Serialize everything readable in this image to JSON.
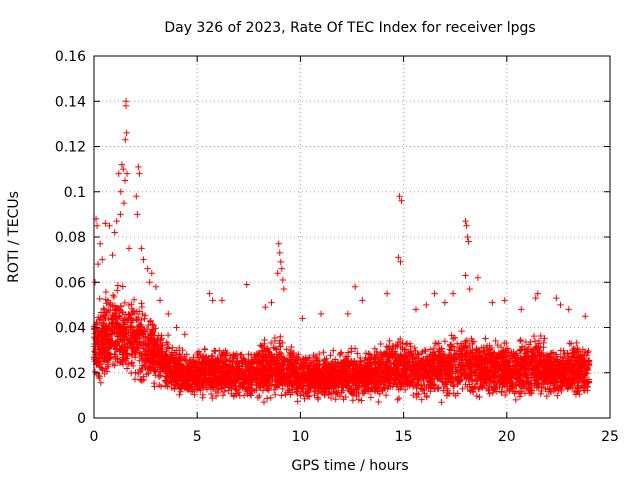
{
  "chart_data": {
    "type": "scatter",
    "title": "Day 326 of 2023, Rate Of TEC Index for receiver lpgs",
    "xlabel": "GPS time / hours",
    "ylabel": "ROTI / TECUs",
    "xlim": [
      0,
      25
    ],
    "ylim": [
      0,
      0.16
    ],
    "x_ticks": [
      0,
      5,
      10,
      15,
      20,
      25
    ],
    "x_tick_labels": [
      "0",
      "5",
      "10",
      "15",
      "20",
      "25"
    ],
    "y_ticks": [
      0,
      0.02,
      0.04,
      0.06,
      0.08,
      0.1,
      0.12,
      0.14,
      0.16
    ],
    "y_tick_labels": [
      "0",
      "0.02",
      "0.04",
      "0.06",
      "0.08",
      "0.1",
      "0.12",
      "0.14",
      "0.16"
    ],
    "grid": true,
    "marker": "+",
    "color": "#ff0000",
    "series": [
      {
        "points": [
          [
            1.55,
            0.14
          ],
          [
            1.55,
            0.138
          ],
          [
            1.58,
            0.126
          ],
          [
            1.52,
            0.123
          ],
          [
            1.35,
            0.112
          ],
          [
            1.42,
            0.11
          ],
          [
            1.6,
            0.108
          ],
          [
            1.5,
            0.105
          ],
          [
            2.15,
            0.111
          ],
          [
            2.2,
            0.108
          ],
          [
            2.05,
            0.098
          ],
          [
            2.1,
            0.09
          ],
          [
            1.2,
            0.108
          ],
          [
            1.3,
            0.1
          ],
          [
            1.45,
            0.095
          ],
          [
            1.28,
            0.09
          ],
          [
            0.1,
            0.088
          ],
          [
            0.15,
            0.085
          ],
          [
            0.3,
            0.077
          ],
          [
            0.55,
            0.086
          ],
          [
            0.75,
            0.085
          ],
          [
            1.1,
            0.087
          ],
          [
            1.0,
            0.082
          ],
          [
            2.3,
            0.075
          ],
          [
            2.4,
            0.07
          ],
          [
            2.6,
            0.066
          ],
          [
            2.8,
            0.064
          ],
          [
            0.4,
            0.07
          ],
          [
            0.2,
            0.068
          ],
          [
            0.05,
            0.06
          ],
          [
            0.9,
            0.072
          ],
          [
            1.7,
            0.075
          ],
          [
            14.8,
            0.098
          ],
          [
            14.9,
            0.096
          ],
          [
            14.75,
            0.071
          ],
          [
            14.85,
            0.069
          ],
          [
            18.0,
            0.087
          ],
          [
            18.05,
            0.085
          ],
          [
            18.1,
            0.08
          ],
          [
            18.15,
            0.078
          ],
          [
            18.0,
            0.063
          ],
          [
            18.2,
            0.057
          ],
          [
            18.6,
            0.062
          ],
          [
            8.95,
            0.077
          ],
          [
            9.0,
            0.073
          ],
          [
            9.05,
            0.069
          ],
          [
            9.1,
            0.066
          ],
          [
            9.15,
            0.061
          ],
          [
            9.2,
            0.057
          ],
          [
            8.9,
            0.064
          ],
          [
            12.65,
            0.058
          ],
          [
            13.0,
            0.052
          ],
          [
            14.2,
            0.055
          ],
          [
            16.5,
            0.055
          ],
          [
            5.6,
            0.055
          ],
          [
            5.75,
            0.052
          ],
          [
            6.2,
            0.052
          ],
          [
            7.4,
            0.059
          ],
          [
            8.3,
            0.049
          ],
          [
            8.6,
            0.051
          ],
          [
            10.1,
            0.044
          ],
          [
            11.0,
            0.046
          ],
          [
            12.3,
            0.046
          ],
          [
            15.6,
            0.048
          ],
          [
            16.1,
            0.05
          ],
          [
            17.0,
            0.051
          ],
          [
            17.4,
            0.055
          ],
          [
            19.3,
            0.051
          ],
          [
            19.9,
            0.052
          ],
          [
            20.7,
            0.048
          ],
          [
            21.4,
            0.053
          ],
          [
            21.5,
            0.055
          ],
          [
            22.4,
            0.053
          ],
          [
            22.6,
            0.05
          ],
          [
            23.0,
            0.048
          ],
          [
            23.8,
            0.045
          ],
          [
            3.2,
            0.052
          ],
          [
            3.6,
            0.046
          ],
          [
            4.0,
            0.04
          ],
          [
            4.4,
            0.037
          ],
          [
            3.0,
            0.058
          ],
          [
            2.7,
            0.06
          ]
        ]
      }
    ],
    "envelope": [
      [
        0.0,
        0.012,
        0.05
      ],
      [
        0.5,
        0.012,
        0.06
      ],
      [
        1.0,
        0.012,
        0.063
      ],
      [
        1.5,
        0.011,
        0.06
      ],
      [
        2.0,
        0.011,
        0.058
      ],
      [
        2.5,
        0.011,
        0.052
      ],
      [
        3.0,
        0.01,
        0.046
      ],
      [
        3.5,
        0.009,
        0.038
      ],
      [
        4.0,
        0.007,
        0.033
      ],
      [
        4.5,
        0.006,
        0.032
      ],
      [
        5.0,
        0.006,
        0.032
      ],
      [
        5.5,
        0.006,
        0.035
      ],
      [
        6.0,
        0.006,
        0.033
      ],
      [
        6.5,
        0.006,
        0.032
      ],
      [
        7.0,
        0.006,
        0.033
      ],
      [
        7.5,
        0.006,
        0.032
      ],
      [
        8.0,
        0.006,
        0.036
      ],
      [
        8.5,
        0.006,
        0.037
      ],
      [
        9.0,
        0.006,
        0.04
      ],
      [
        9.5,
        0.006,
        0.036
      ],
      [
        10.0,
        0.006,
        0.031
      ],
      [
        10.5,
        0.006,
        0.031
      ],
      [
        11.0,
        0.006,
        0.031
      ],
      [
        11.5,
        0.006,
        0.03
      ],
      [
        12.0,
        0.006,
        0.031
      ],
      [
        12.5,
        0.006,
        0.033
      ],
      [
        13.0,
        0.006,
        0.031
      ],
      [
        13.5,
        0.006,
        0.033
      ],
      [
        14.0,
        0.006,
        0.036
      ],
      [
        14.5,
        0.006,
        0.039
      ],
      [
        15.0,
        0.006,
        0.038
      ],
      [
        15.5,
        0.006,
        0.035
      ],
      [
        16.0,
        0.006,
        0.036
      ],
      [
        16.5,
        0.006,
        0.038
      ],
      [
        17.0,
        0.006,
        0.038
      ],
      [
        17.5,
        0.006,
        0.039
      ],
      [
        18.0,
        0.006,
        0.041
      ],
      [
        18.5,
        0.006,
        0.041
      ],
      [
        19.0,
        0.006,
        0.039
      ],
      [
        19.5,
        0.006,
        0.038
      ],
      [
        20.0,
        0.006,
        0.036
      ],
      [
        20.5,
        0.006,
        0.036
      ],
      [
        21.0,
        0.006,
        0.04
      ],
      [
        21.5,
        0.006,
        0.041
      ],
      [
        22.0,
        0.006,
        0.035
      ],
      [
        22.5,
        0.006,
        0.034
      ],
      [
        23.0,
        0.006,
        0.036
      ],
      [
        23.5,
        0.006,
        0.036
      ],
      [
        24.0,
        0.006,
        0.035
      ]
    ]
  }
}
